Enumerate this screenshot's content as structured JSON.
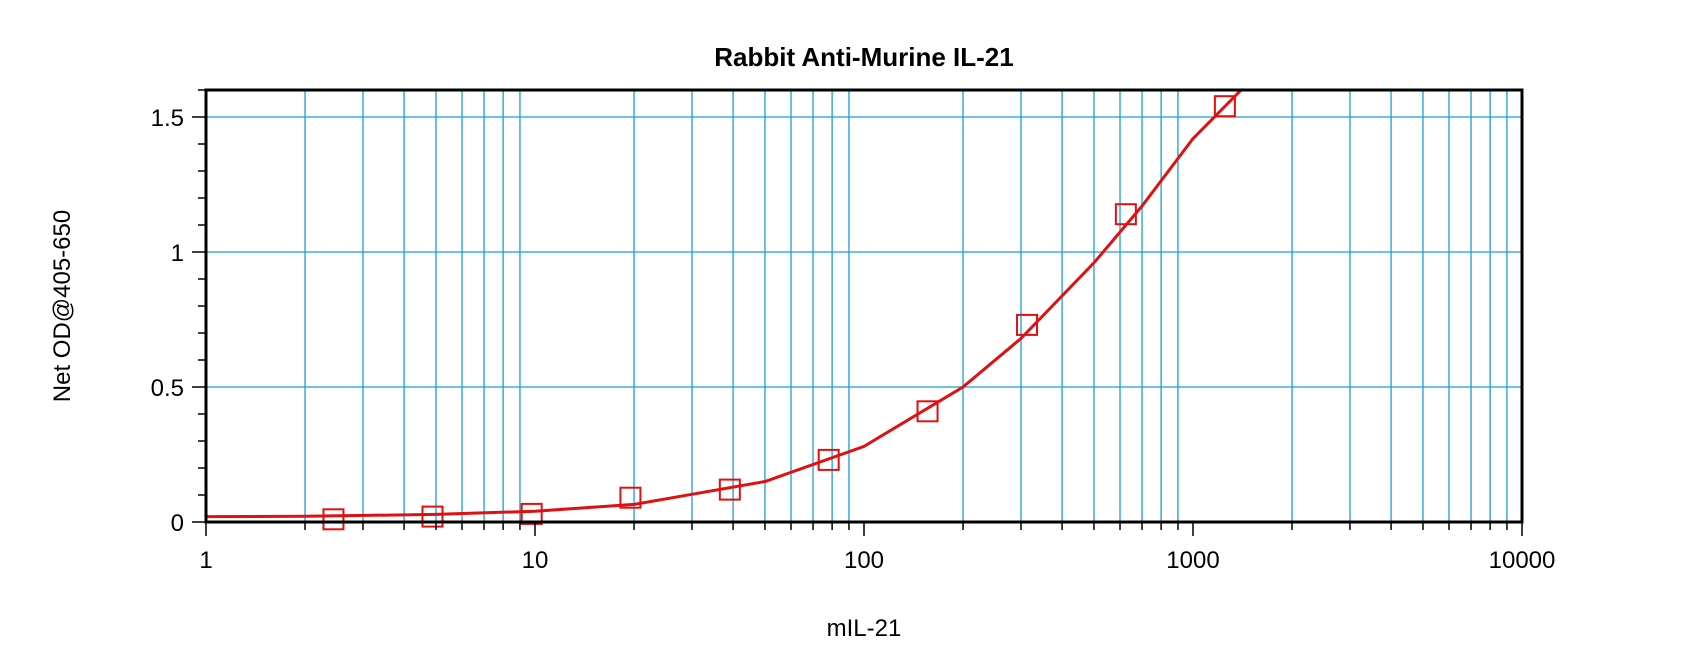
{
  "chart_data": {
    "type": "scatter",
    "title": "Rabbit Anti-Murine IL-21",
    "xlabel": "mIL-21",
    "ylabel": "Net OD@405-650",
    "x_scale": "log",
    "xlim": [
      1,
      10000
    ],
    "ylim": [
      0,
      1.6
    ],
    "x_tick_labels": [
      "1",
      "10",
      "100",
      "1000",
      "10000"
    ],
    "y_tick_labels": [
      "0",
      "0.5",
      "1",
      "1.5"
    ],
    "grid": true,
    "colors": {
      "grid": "#1a9ed6",
      "series": "#e01010",
      "frame": "#000000"
    },
    "series": [
      {
        "marker": "square",
        "x": [
          2.44,
          4.88,
          9.77,
          19.5,
          39.1,
          78.1,
          156,
          313,
          625,
          1250
        ],
        "y": [
          0.01,
          0.02,
          0.03,
          0.09,
          0.12,
          0.23,
          0.41,
          0.73,
          1.14,
          1.54
        ]
      }
    ],
    "fit_curve": {
      "x": [
        1,
        2,
        5,
        10,
        20,
        50,
        100,
        200,
        300,
        500,
        700,
        1000,
        1400
      ],
      "y": [
        0.02,
        0.021,
        0.028,
        0.04,
        0.065,
        0.15,
        0.28,
        0.5,
        0.68,
        0.96,
        1.17,
        1.42,
        1.6
      ]
    }
  }
}
